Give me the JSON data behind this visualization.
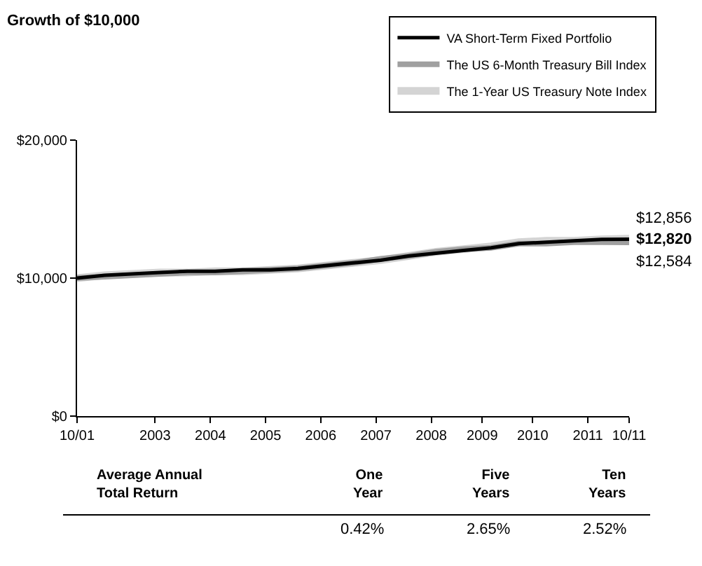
{
  "chart_data": {
    "type": "line",
    "title": "Growth of $10,000",
    "x": [
      "2001-10",
      "2002-04",
      "2002-10",
      "2003-04",
      "2003-10",
      "2004-04",
      "2004-10",
      "2005-04",
      "2005-10",
      "2006-04",
      "2006-10",
      "2007-04",
      "2007-10",
      "2008-04",
      "2008-10",
      "2009-04",
      "2009-10",
      "2010-04",
      "2010-10",
      "2011-04",
      "2011-10"
    ],
    "series": [
      {
        "name": "VA Short-Term Fixed Portfolio",
        "color": "#000000",
        "values": [
          10000,
          10200,
          10300,
          10400,
          10500,
          10500,
          10600,
          10600,
          10700,
          10900,
          11100,
          11300,
          11600,
          11800,
          12000,
          12200,
          12500,
          12600,
          12700,
          12800,
          12820
        ],
        "value_labels": [
          null,
          null,
          null,
          null,
          null,
          null,
          null,
          null,
          null,
          null,
          null,
          null,
          null,
          null,
          null,
          null,
          null,
          null,
          null,
          null,
          "$12,820"
        ]
      },
      {
        "name": "The US 6-Month Treasury Bill Index",
        "color": "#a0a0a0",
        "values": [
          10000,
          10100,
          10200,
          10300,
          10400,
          10400,
          10500,
          10600,
          10700,
          10900,
          11100,
          11400,
          11600,
          11900,
          12100,
          12200,
          12500,
          12500,
          12600,
          12600,
          12584
        ],
        "value_labels": [
          null,
          null,
          null,
          null,
          null,
          null,
          null,
          null,
          null,
          null,
          null,
          null,
          null,
          null,
          null,
          null,
          null,
          null,
          null,
          null,
          "$12,584"
        ]
      },
      {
        "name": "The 1-Year US Treasury Note Index",
        "color": "#d4d4d4",
        "values": [
          10000,
          10200,
          10300,
          10400,
          10400,
          10500,
          10500,
          10600,
          10700,
          10900,
          11100,
          11300,
          11600,
          11900,
          12100,
          12300,
          12600,
          12700,
          12700,
          12800,
          12856
        ],
        "value_labels": [
          null,
          null,
          null,
          null,
          null,
          null,
          null,
          null,
          null,
          null,
          null,
          null,
          null,
          null,
          null,
          null,
          null,
          null,
          null,
          null,
          "$12,856"
        ]
      }
    ],
    "xlim": [
      "2001-10",
      "2011-10"
    ],
    "xticks": [
      {
        "value": "2001-10",
        "label": "10/01"
      },
      {
        "value": "2003-03",
        "label": "2003"
      },
      {
        "value": "2004-03",
        "label": "2004"
      },
      {
        "value": "2005-03",
        "label": "2005"
      },
      {
        "value": "2006-03",
        "label": "2006"
      },
      {
        "value": "2007-03",
        "label": "2007"
      },
      {
        "value": "2008-03",
        "label": "2008"
      },
      {
        "value": "2009-02",
        "label": "2009"
      },
      {
        "value": "2010-01",
        "label": "2010"
      },
      {
        "value": "2011-01",
        "label": "2011"
      },
      {
        "value": "2011-10",
        "label": "10/11"
      }
    ],
    "ylim": [
      0,
      20000
    ],
    "yticks": [
      {
        "value": 0,
        "label": "$0"
      },
      {
        "value": 10000,
        "label": "$10,000"
      },
      {
        "value": 20000,
        "label": "$20,000"
      }
    ],
    "grid": false,
    "legend": "top right",
    "marker": "none",
    "line_style": "solid",
    "annotations": [
      "Average Annual\nTotal Return",
      "One\nYear",
      "Five\nYears",
      "Ten\nYears",
      "0.42%",
      "2.65%",
      "2.52%"
    ]
  }
}
